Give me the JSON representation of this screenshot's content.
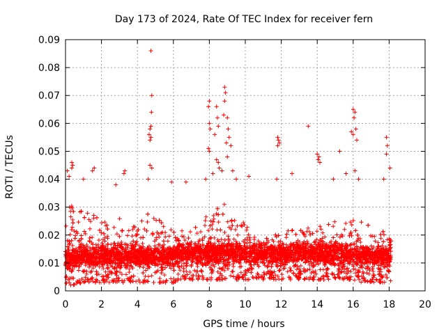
{
  "chart_data": {
    "type": "scatter",
    "title": "Day 173 of 2024, Rate Of TEC Index for receiver fern",
    "xlabel": "GPS time / hours",
    "ylabel": "ROTI / TECUs",
    "xlim": [
      0,
      20
    ],
    "ylim": [
      0,
      0.09
    ],
    "x_ticks": [
      "0",
      "2",
      "4",
      "6",
      "8",
      "10",
      "12",
      "14",
      "16",
      "18",
      "20"
    ],
    "y_ticks": [
      "0",
      "0.01",
      "0.02",
      "0.03",
      "0.04",
      "0.05",
      "0.06",
      "0.07",
      "0.08",
      "0.09"
    ],
    "grid": true,
    "marker": "+",
    "series_color": "#ff0000",
    "data_x_range": [
      0,
      18.1
    ],
    "density_profile": [
      {
        "x": 0.0,
        "low": 0.002,
        "high": 0.03
      },
      {
        "x": 0.5,
        "low": 0.002,
        "high": 0.031
      },
      {
        "x": 1.0,
        "low": 0.003,
        "high": 0.028
      },
      {
        "x": 1.5,
        "low": 0.003,
        "high": 0.028
      },
      {
        "x": 2.0,
        "low": 0.003,
        "high": 0.025
      },
      {
        "x": 2.5,
        "low": 0.003,
        "high": 0.024
      },
      {
        "x": 3.0,
        "low": 0.003,
        "high": 0.026
      },
      {
        "x": 3.5,
        "low": 0.003,
        "high": 0.025
      },
      {
        "x": 4.0,
        "low": 0.003,
        "high": 0.024
      },
      {
        "x": 4.5,
        "low": 0.003,
        "high": 0.028
      },
      {
        "x": 5.0,
        "low": 0.003,
        "high": 0.027
      },
      {
        "x": 5.5,
        "low": 0.003,
        "high": 0.024
      },
      {
        "x": 6.0,
        "low": 0.003,
        "high": 0.022
      },
      {
        "x": 6.5,
        "low": 0.004,
        "high": 0.022
      },
      {
        "x": 7.0,
        "low": 0.004,
        "high": 0.023
      },
      {
        "x": 7.5,
        "low": 0.004,
        "high": 0.024
      },
      {
        "x": 8.0,
        "low": 0.004,
        "high": 0.03
      },
      {
        "x": 8.5,
        "low": 0.004,
        "high": 0.032
      },
      {
        "x": 9.0,
        "low": 0.004,
        "high": 0.032
      },
      {
        "x": 9.5,
        "low": 0.004,
        "high": 0.028
      },
      {
        "x": 10.0,
        "low": 0.004,
        "high": 0.024
      },
      {
        "x": 10.5,
        "low": 0.004,
        "high": 0.02
      },
      {
        "x": 11.0,
        "low": 0.004,
        "high": 0.019
      },
      {
        "x": 11.5,
        "low": 0.004,
        "high": 0.02
      },
      {
        "x": 12.0,
        "low": 0.004,
        "high": 0.021
      },
      {
        "x": 12.5,
        "low": 0.004,
        "high": 0.022
      },
      {
        "x": 13.0,
        "low": 0.004,
        "high": 0.022
      },
      {
        "x": 13.5,
        "low": 0.004,
        "high": 0.023
      },
      {
        "x": 14.0,
        "low": 0.004,
        "high": 0.023
      },
      {
        "x": 14.5,
        "low": 0.004,
        "high": 0.024
      },
      {
        "x": 15.0,
        "low": 0.004,
        "high": 0.025
      },
      {
        "x": 15.5,
        "low": 0.004,
        "high": 0.025
      },
      {
        "x": 16.0,
        "low": 0.004,
        "high": 0.026
      },
      {
        "x": 16.5,
        "low": 0.003,
        "high": 0.025
      },
      {
        "x": 17.0,
        "low": 0.003,
        "high": 0.024
      },
      {
        "x": 17.5,
        "low": 0.003,
        "high": 0.022
      },
      {
        "x": 18.0,
        "low": 0.003,
        "high": 0.02
      }
    ],
    "outliers": [
      {
        "x": 0.1,
        "y": 0.043
      },
      {
        "x": 0.2,
        "y": 0.041
      },
      {
        "x": 0.35,
        "y": 0.046
      },
      {
        "x": 0.4,
        "y": 0.045
      },
      {
        "x": 0.35,
        "y": 0.044
      },
      {
        "x": 1.0,
        "y": 0.04
      },
      {
        "x": 1.6,
        "y": 0.044
      },
      {
        "x": 1.5,
        "y": 0.043
      },
      {
        "x": 3.3,
        "y": 0.043
      },
      {
        "x": 3.25,
        "y": 0.042
      },
      {
        "x": 4.6,
        "y": 0.04
      },
      {
        "x": 4.75,
        "y": 0.086
      },
      {
        "x": 4.8,
        "y": 0.07
      },
      {
        "x": 4.78,
        "y": 0.064
      },
      {
        "x": 4.75,
        "y": 0.059
      },
      {
        "x": 4.7,
        "y": 0.058
      },
      {
        "x": 4.65,
        "y": 0.056
      },
      {
        "x": 4.7,
        "y": 0.054
      },
      {
        "x": 4.75,
        "y": 0.055
      },
      {
        "x": 4.7,
        "y": 0.045
      },
      {
        "x": 4.8,
        "y": 0.044
      },
      {
        "x": 8.0,
        "y": 0.068
      },
      {
        "x": 7.95,
        "y": 0.066
      },
      {
        "x": 8.0,
        "y": 0.06
      },
      {
        "x": 8.05,
        "y": 0.058
      },
      {
        "x": 7.95,
        "y": 0.051
      },
      {
        "x": 8.0,
        "y": 0.05
      },
      {
        "x": 8.4,
        "y": 0.066
      },
      {
        "x": 8.45,
        "y": 0.062
      },
      {
        "x": 8.3,
        "y": 0.056
      },
      {
        "x": 8.5,
        "y": 0.059
      },
      {
        "x": 8.85,
        "y": 0.073
      },
      {
        "x": 8.9,
        "y": 0.071
      },
      {
        "x": 8.85,
        "y": 0.068
      },
      {
        "x": 8.8,
        "y": 0.063
      },
      {
        "x": 9.0,
        "y": 0.062
      },
      {
        "x": 9.05,
        "y": 0.058
      },
      {
        "x": 9.1,
        "y": 0.055
      },
      {
        "x": 8.95,
        "y": 0.053
      },
      {
        "x": 9.2,
        "y": 0.052
      },
      {
        "x": 9.0,
        "y": 0.048
      },
      {
        "x": 8.4,
        "y": 0.047
      },
      {
        "x": 8.5,
        "y": 0.046
      },
      {
        "x": 8.55,
        "y": 0.044
      },
      {
        "x": 8.7,
        "y": 0.043
      },
      {
        "x": 9.3,
        "y": 0.043
      },
      {
        "x": 9.5,
        "y": 0.04
      },
      {
        "x": 8.2,
        "y": 0.042
      },
      {
        "x": 7.8,
        "y": 0.04
      },
      {
        "x": 11.8,
        "y": 0.055
      },
      {
        "x": 11.85,
        "y": 0.054
      },
      {
        "x": 11.9,
        "y": 0.053
      },
      {
        "x": 11.8,
        "y": 0.052
      },
      {
        "x": 11.75,
        "y": 0.04
      },
      {
        "x": 12.6,
        "y": 0.042
      },
      {
        "x": 13.5,
        "y": 0.059
      },
      {
        "x": 14.0,
        "y": 0.049
      },
      {
        "x": 14.1,
        "y": 0.048
      },
      {
        "x": 14.05,
        "y": 0.047
      },
      {
        "x": 14.15,
        "y": 0.046
      },
      {
        "x": 15.25,
        "y": 0.05
      },
      {
        "x": 15.9,
        "y": 0.057
      },
      {
        "x": 16.0,
        "y": 0.065
      },
      {
        "x": 16.1,
        "y": 0.064
      },
      {
        "x": 16.05,
        "y": 0.062
      },
      {
        "x": 16.15,
        "y": 0.058
      },
      {
        "x": 16.2,
        "y": 0.054
      },
      {
        "x": 16.0,
        "y": 0.056
      },
      {
        "x": 16.1,
        "y": 0.043
      },
      {
        "x": 16.3,
        "y": 0.04
      },
      {
        "x": 17.85,
        "y": 0.055
      },
      {
        "x": 17.9,
        "y": 0.052
      },
      {
        "x": 17.85,
        "y": 0.049
      },
      {
        "x": 18.05,
        "y": 0.044
      },
      {
        "x": 17.7,
        "y": 0.04
      },
      {
        "x": 15.6,
        "y": 0.042
      },
      {
        "x": 14.9,
        "y": 0.04
      },
      {
        "x": 5.9,
        "y": 0.039
      },
      {
        "x": 6.7,
        "y": 0.039
      },
      {
        "x": 2.8,
        "y": 0.038
      },
      {
        "x": 10.2,
        "y": 0.041
      }
    ]
  }
}
